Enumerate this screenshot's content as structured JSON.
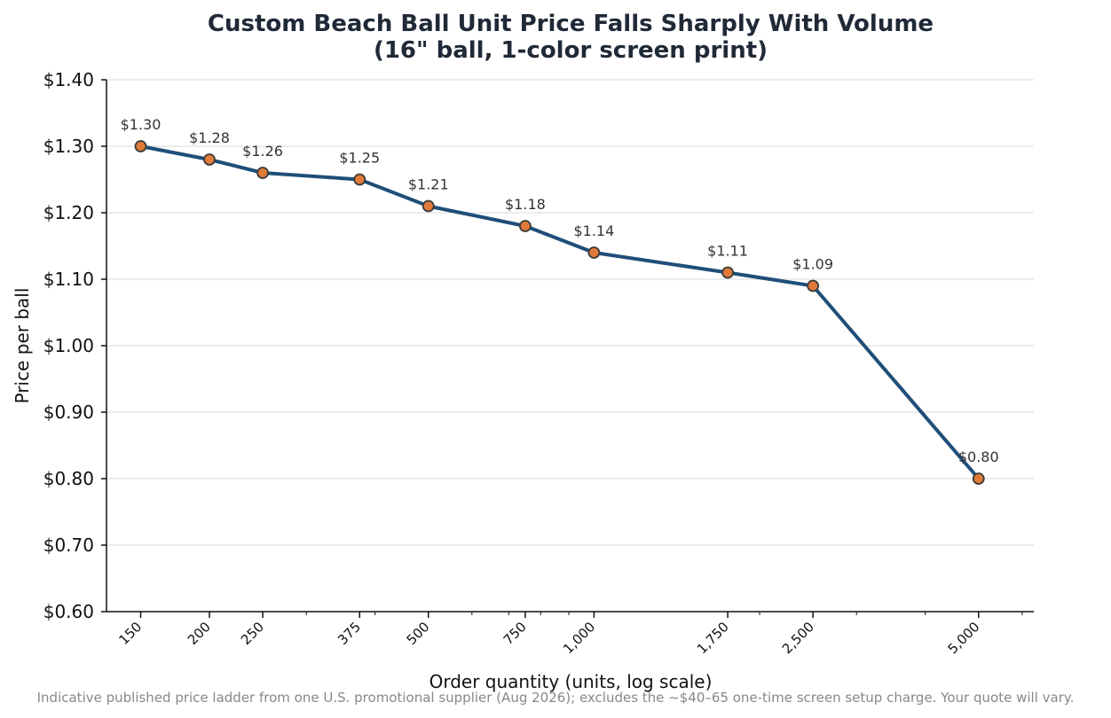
{
  "chart_data": {
    "type": "line",
    "title_line1": "Custom Beach Ball Unit Price Falls Sharply With Volume",
    "title_line2": "(16\" ball, 1-color screen print)",
    "xlabel": "Order quantity (units, log scale)",
    "ylabel": "Price per ball",
    "x_scale": "log",
    "grid": "horizontal",
    "x": [
      150,
      200,
      250,
      375,
      500,
      750,
      1000,
      1750,
      2500,
      5000
    ],
    "x_tick_labels": [
      "150",
      "200",
      "250",
      "375",
      "500",
      "750",
      "1,000",
      "1,750",
      "2,500",
      "5,000"
    ],
    "values": [
      1.3,
      1.28,
      1.26,
      1.25,
      1.21,
      1.18,
      1.14,
      1.11,
      1.09,
      0.8
    ],
    "data_labels": [
      "$1.30",
      "$1.28",
      "$1.26",
      "$1.25",
      "$1.21",
      "$1.18",
      "$1.14",
      "$1.11",
      "$1.09",
      "$0.80"
    ],
    "ylim": [
      0.6,
      1.4
    ],
    "y_ticks": [
      0.6,
      0.7,
      0.8,
      0.9,
      1.0,
      1.1,
      1.2,
      1.3,
      1.4
    ],
    "y_tick_labels": [
      "$0.60",
      "$0.70",
      "$0.80",
      "$0.90",
      "$1.00",
      "$1.10",
      "$1.20",
      "$1.30",
      "$1.40"
    ],
    "line_color": "#1f4e79",
    "marker_color": "#e07b39",
    "marker_edge_color": "#3a3a3a",
    "grid_color": "#e6e6e6"
  },
  "footnote": "Indicative published price ladder from one U.S. promotional supplier (Aug 2026); excludes the ~$40–65 one-time screen setup charge. Your quote will vary."
}
